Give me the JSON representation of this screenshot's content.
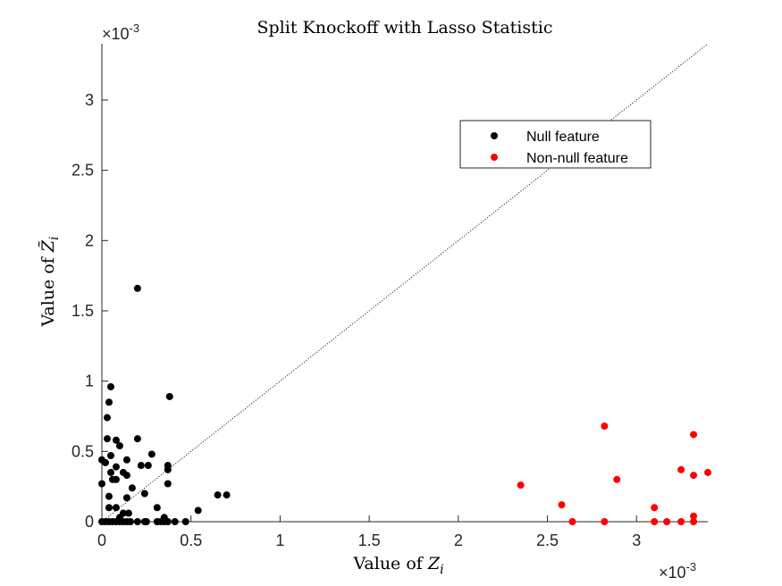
{
  "chart_data": {
    "type": "scatter",
    "title": "Split Knockoff with Lasso Statistic",
    "xlabel_prefix": "Value of ",
    "xlabel_var": "Z",
    "xlabel_sub": "i",
    "ylabel_prefix": "Value of ",
    "ylabel_var": "Z̃",
    "ylabel_sub": "i",
    "x_exponent": "×10^-3",
    "y_exponent": "×10^-3",
    "x_exponent_base": "×10",
    "x_exponent_power": "-3",
    "y_exponent_base": "×10",
    "y_exponent_power": "-3",
    "xlim": [
      0,
      3.4
    ],
    "ylim": [
      0,
      3.4
    ],
    "xticks": [
      0,
      0.5,
      1,
      1.5,
      2,
      2.5,
      3
    ],
    "yticks": [
      0,
      0.5,
      1,
      1.5,
      2,
      2.5,
      3
    ],
    "xtick_labels": [
      "0",
      "0.5",
      "1",
      "1.5",
      "2",
      "2.5",
      "3"
    ],
    "ytick_labels": [
      "0",
      "0.5",
      "1",
      "1.5",
      "2",
      "2.5",
      "3"
    ],
    "units_note": "values in units of 1e-3",
    "grid": false,
    "reference_line": {
      "style": "dotted",
      "from": [
        0,
        0
      ],
      "to": [
        3.4,
        3.4
      ]
    },
    "legend": {
      "placement": "upper-right-inside",
      "entries": [
        "Null feature",
        "Non-null feature"
      ]
    },
    "series": [
      {
        "name": "Null feature",
        "color": "#000000",
        "points": [
          [
            0.2,
            1.66
          ],
          [
            0.38,
            0.89
          ],
          [
            0.05,
            0.96
          ],
          [
            0.04,
            0.85
          ],
          [
            0.03,
            0.74
          ],
          [
            0.03,
            0.59
          ],
          [
            0.2,
            0.59
          ],
          [
            0.08,
            0.58
          ],
          [
            0.1,
            0.54
          ],
          [
            0.0,
            0.44
          ],
          [
            0.02,
            0.42
          ],
          [
            0.05,
            0.47
          ],
          [
            0.14,
            0.44
          ],
          [
            0.28,
            0.48
          ],
          [
            0.22,
            0.4
          ],
          [
            0.26,
            0.4
          ],
          [
            0.37,
            0.4
          ],
          [
            0.37,
            0.37
          ],
          [
            0.08,
            0.39
          ],
          [
            0.05,
            0.35
          ],
          [
            0.12,
            0.35
          ],
          [
            0.14,
            0.33
          ],
          [
            0.08,
            0.3
          ],
          [
            0.06,
            0.3
          ],
          [
            0.37,
            0.27
          ],
          [
            0.0,
            0.27
          ],
          [
            0.17,
            0.24
          ],
          [
            0.24,
            0.2
          ],
          [
            0.04,
            0.18
          ],
          [
            0.14,
            0.17
          ],
          [
            0.65,
            0.19
          ],
          [
            0.7,
            0.19
          ],
          [
            0.54,
            0.08
          ],
          [
            0.04,
            0.1
          ],
          [
            0.08,
            0.1
          ],
          [
            0.31,
            0.1
          ],
          [
            0.15,
            0.06
          ],
          [
            0.12,
            0.06
          ],
          [
            0.35,
            0.03
          ],
          [
            0.1,
            0.03
          ],
          [
            0.0,
            0.0
          ],
          [
            0.02,
            0.0
          ],
          [
            0.04,
            0.0
          ],
          [
            0.06,
            0.0
          ],
          [
            0.08,
            0.0
          ],
          [
            0.1,
            0.0
          ],
          [
            0.12,
            0.0
          ],
          [
            0.14,
            0.0
          ],
          [
            0.16,
            0.0
          ],
          [
            0.2,
            0.0
          ],
          [
            0.24,
            0.0
          ],
          [
            0.25,
            0.0
          ],
          [
            0.31,
            0.0
          ],
          [
            0.33,
            0.0
          ],
          [
            0.35,
            0.0
          ],
          [
            0.37,
            0.0
          ],
          [
            0.41,
            0.0
          ],
          [
            0.47,
            0.0
          ]
        ]
      },
      {
        "name": "Non-null feature",
        "color": "#ff0000",
        "points": [
          [
            2.35,
            0.26
          ],
          [
            2.58,
            0.12
          ],
          [
            2.64,
            0.0
          ],
          [
            2.82,
            0.68
          ],
          [
            2.82,
            0.0
          ],
          [
            2.89,
            0.3
          ],
          [
            3.1,
            0.1
          ],
          [
            3.1,
            0.0
          ],
          [
            3.17,
            0.0
          ],
          [
            3.25,
            0.37
          ],
          [
            3.25,
            0.0
          ],
          [
            3.32,
            0.62
          ],
          [
            3.32,
            0.33
          ],
          [
            3.32,
            0.04
          ],
          [
            3.32,
            0.0
          ],
          [
            3.4,
            0.35
          ]
        ]
      }
    ]
  }
}
